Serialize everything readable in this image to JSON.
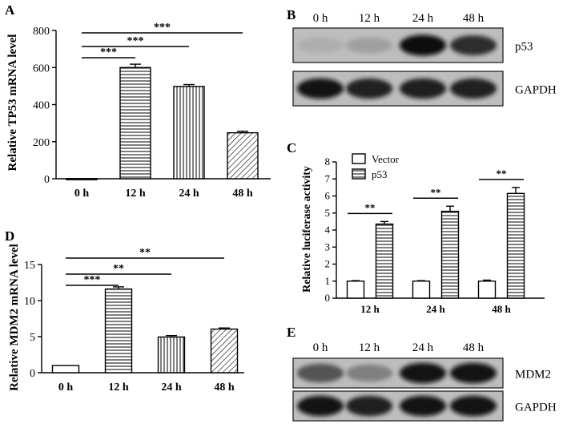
{
  "chart_data": [
    {
      "panel": "A",
      "type": "bar",
      "ylabel": "Relative TP53 mRNA level",
      "categories": [
        "0 h",
        "12 h",
        "24 h",
        "48 h"
      ],
      "values": [
        1,
        600,
        498,
        248
      ],
      "errors": [
        0,
        18,
        10,
        8
      ],
      "patterns": [
        "solid",
        "horizontal",
        "vertical",
        "diagonal"
      ],
      "ylim": [
        0,
        800
      ],
      "yticks": [
        "0",
        "200",
        "400",
        "600",
        "800"
      ],
      "significance": [
        {
          "from": 0,
          "to": 1,
          "label": "***"
        },
        {
          "from": 0,
          "to": 2,
          "label": "***"
        },
        {
          "from": 0,
          "to": 3,
          "label": "***"
        }
      ]
    },
    {
      "panel": "C",
      "type": "bar",
      "ylabel": "Relative luciferase activity",
      "categories": [
        "12 h",
        "24 h",
        "48 h"
      ],
      "series": [
        {
          "name": "Vector",
          "values": [
            1.0,
            1.0,
            1.0
          ],
          "errors": [
            0.03,
            0.03,
            0.06
          ],
          "pattern": "solid"
        },
        {
          "name": "p53",
          "values": [
            4.35,
            5.1,
            6.15
          ],
          "errors": [
            0.15,
            0.3,
            0.35
          ],
          "pattern": "horizontal"
        }
      ],
      "ylim": [
        0,
        8
      ],
      "yticks": [
        "0",
        "1",
        "2",
        "3",
        "4",
        "5",
        "6",
        "7",
        "8"
      ],
      "significance": [
        "**",
        "**",
        "**"
      ],
      "legend": "top-left"
    },
    {
      "panel": "D",
      "type": "bar",
      "ylabel": "Relative MDM2 mRNA level",
      "categories": [
        "0 h",
        "12 h",
        "24 h",
        "48 h"
      ],
      "values": [
        1,
        11.6,
        4.95,
        6.05
      ],
      "errors": [
        0,
        0.3,
        0.2,
        0.15
      ],
      "patterns": [
        "solid",
        "horizontal",
        "vertical",
        "diagonal"
      ],
      "ylim": [
        0,
        15
      ],
      "yticks": [
        "0",
        "5",
        "10",
        "15"
      ],
      "significance": [
        {
          "from": 0,
          "to": 1,
          "label": "***"
        },
        {
          "from": 0,
          "to": 2,
          "label": "**"
        },
        {
          "from": 0,
          "to": 3,
          "label": "**"
        }
      ]
    }
  ],
  "blots": [
    {
      "panel": "B",
      "lanes": [
        "0 h",
        "12 h",
        "24 h",
        "48 h"
      ],
      "rows": [
        {
          "label": "p53",
          "intensities": [
            0.08,
            0.22,
            1.0,
            0.85
          ]
        },
        {
          "label": "GAPDH",
          "intensities": [
            0.95,
            0.9,
            0.92,
            0.9
          ]
        }
      ]
    },
    {
      "panel": "E",
      "lanes": [
        "0 h",
        "12 h",
        "24 h",
        "48 h"
      ],
      "rows": [
        {
          "label": "MDM2",
          "intensities": [
            0.7,
            0.45,
            0.95,
            0.95
          ]
        },
        {
          "label": "GAPDH",
          "intensities": [
            0.95,
            0.92,
            0.95,
            0.95
          ]
        }
      ]
    }
  ]
}
